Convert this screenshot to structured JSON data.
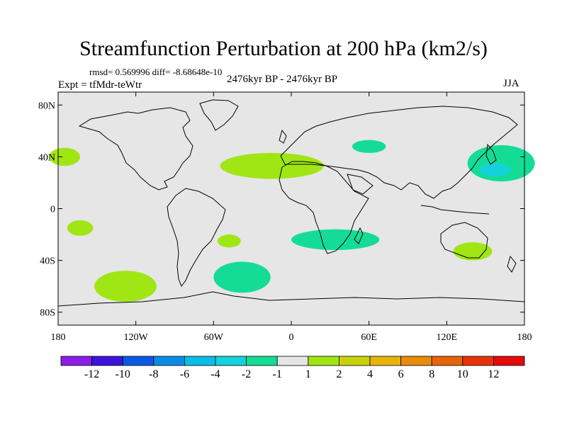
{
  "title": "Streamfunction Perturbation at 200 hPa (km2/s)",
  "stats_line": "rmsd= 0.569996 diff= -8.68648e-10",
  "experiment": "Expt = tfMdr-teWtr",
  "period": "2476kyr BP - 2476kyr BP",
  "season": "JJA",
  "map": {
    "lon_range": [
      -180,
      180
    ],
    "lat_range": [
      -90,
      90
    ],
    "y_ticks": [
      {
        "lat": 80,
        "label": "80N"
      },
      {
        "lat": 40,
        "label": "40N"
      },
      {
        "lat": 0,
        "label": "0"
      },
      {
        "lat": -40,
        "label": "40S"
      },
      {
        "lat": -80,
        "label": "80S"
      }
    ],
    "x_ticks": [
      {
        "lon": -180,
        "label": "180"
      },
      {
        "lon": -120,
        "label": "120W"
      },
      {
        "lon": -60,
        "label": "60W"
      },
      {
        "lon": 0,
        "label": "0"
      },
      {
        "lon": 60,
        "label": "60E"
      },
      {
        "lon": 120,
        "label": "120E"
      },
      {
        "lon": 180,
        "label": "180"
      }
    ],
    "anomaly_regions": [
      {
        "name": "north-pacific-east-positive-anomaly",
        "lon": -175,
        "lat": 40,
        "rlon": 12,
        "rlat": 7,
        "class": "2"
      },
      {
        "name": "north-atlantic-positive-anomaly",
        "lon": -15,
        "lat": 33,
        "rlon": 40,
        "rlat": 10,
        "class": "2"
      },
      {
        "name": "east-asia-pacific-negative-anomaly",
        "lon": 162,
        "lat": 35,
        "rlon": 26,
        "rlat": 14,
        "class": "-2"
      },
      {
        "name": "east-asia-pacific-core-negative-anomaly",
        "lon": 157,
        "lat": 30,
        "rlon": 12,
        "rlat": 5,
        "class": "-4"
      },
      {
        "name": "central-asia-negative-anomaly",
        "lon": 60,
        "lat": 48,
        "rlon": 13,
        "rlat": 5,
        "class": "-2"
      },
      {
        "name": "south-pacific-tropical-positive-anomaly",
        "lon": -163,
        "lat": -15,
        "rlon": 10,
        "rlat": 6,
        "class": "2"
      },
      {
        "name": "south-america-positive-anomaly",
        "lon": -48,
        "lat": -25,
        "rlon": 9,
        "rlat": 5,
        "class": "2"
      },
      {
        "name": "south-atlantic-africa-negative-anomaly",
        "lon": 34,
        "lat": -24,
        "rlon": 34,
        "rlat": 8,
        "class": "-2"
      },
      {
        "name": "australia-positive-anomaly",
        "lon": 140,
        "lat": -33,
        "rlon": 15,
        "rlat": 7,
        "class": "2"
      },
      {
        "name": "south-pacific-midlat-positive-anomaly",
        "lon": -128,
        "lat": -60,
        "rlon": 24,
        "rlat": 12,
        "class": "2"
      },
      {
        "name": "south-atlantic-midlat-negative-anomaly",
        "lon": -38,
        "lat": -53,
        "rlon": 22,
        "rlat": 12,
        "class": "-2"
      }
    ]
  },
  "colorbar": {
    "colors": [
      "#8a1ee6",
      "#3c14dc",
      "#0a5ae6",
      "#0a8ce6",
      "#0abee6",
      "#14d2dc",
      "#14dc96",
      "#e6e6e6",
      "#a0e614",
      "#c8d20a",
      "#e6b40a",
      "#e68c0a",
      "#e6640a",
      "#e6320a",
      "#e60a0a"
    ],
    "labels": [
      "-12",
      "-10",
      "-8",
      "-6",
      "-4",
      "-2",
      "-1",
      "1",
      "2",
      "4",
      "6",
      "8",
      "10",
      "12"
    ]
  },
  "level_colors": {
    "2": "#a0e614",
    "-2": "#14dc96",
    "-4": "#14d2dc"
  },
  "ocean_color": "#e6e6e6"
}
